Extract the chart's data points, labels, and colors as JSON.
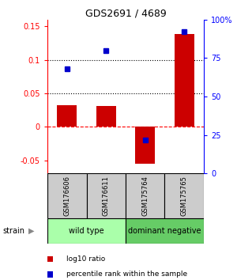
{
  "title": "GDS2691 / 4689",
  "samples": [
    "GSM176606",
    "GSM176611",
    "GSM175764",
    "GSM175765"
  ],
  "log10_ratio": [
    0.032,
    0.031,
    -0.055,
    0.138
  ],
  "percentile_rank_pct": [
    68,
    80,
    22,
    92
  ],
  "groups": [
    {
      "label": "wild type",
      "samples": [
        0,
        1
      ],
      "color": "#aaffaa"
    },
    {
      "label": "dominant negative",
      "samples": [
        2,
        3
      ],
      "color": "#66cc66"
    }
  ],
  "bar_color": "#cc0000",
  "dot_color": "#0000cc",
  "ylim_left": [
    -0.07,
    0.16
  ],
  "ylim_right": [
    0,
    100
  ],
  "yticks_left": [
    -0.05,
    0,
    0.05,
    0.1,
    0.15
  ],
  "ytick_labels_left": [
    "-0.05",
    "0",
    "0.05",
    "0.1",
    "0.15"
  ],
  "yticks_right": [
    0,
    25,
    50,
    75,
    100
  ],
  "ytick_labels_right": [
    "0",
    "25",
    "50",
    "75",
    "100%"
  ],
  "hlines": [
    0.05,
    0.1
  ],
  "zero_line": 0.0,
  "legend_items": [
    "log10 ratio",
    "percentile rank within the sample"
  ],
  "background_label": "#cccccc",
  "strain_label": "strain"
}
